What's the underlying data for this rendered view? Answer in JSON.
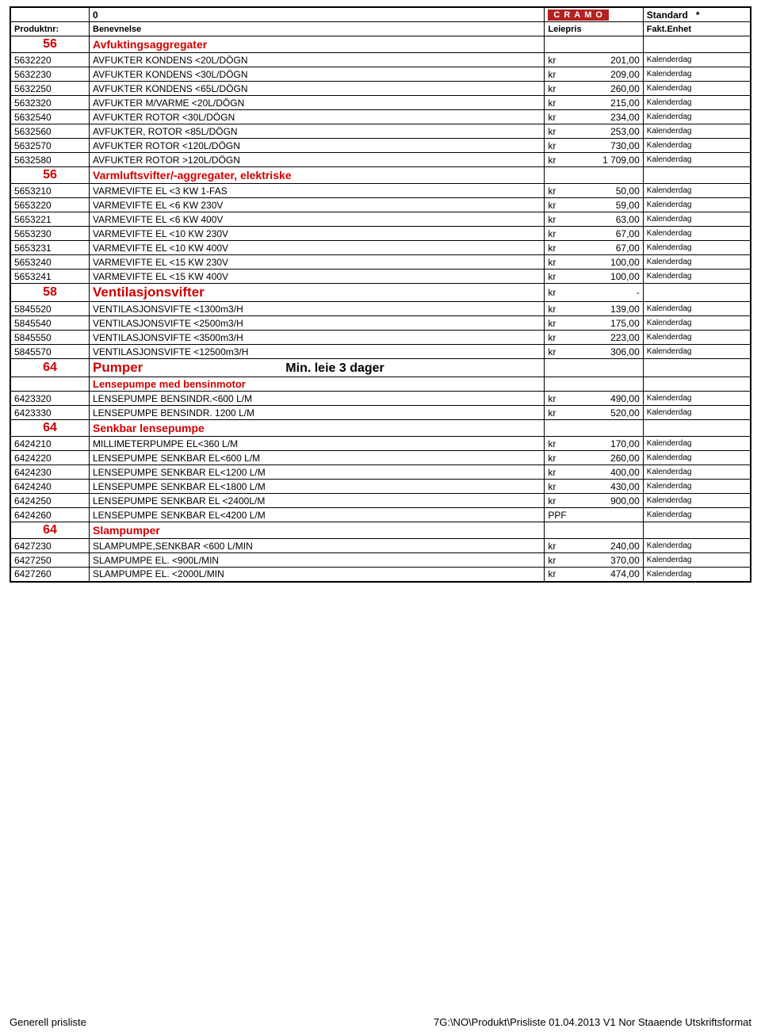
{
  "header": {
    "zero": "0",
    "logo": "CRAMO",
    "standard": "Standard",
    "star": "*",
    "produktnr": "Produktnr:",
    "benevnelse": "Benevnelse",
    "leiepris": "Leiepris",
    "faktenhet": "Fakt.Enhet"
  },
  "sections": [
    {
      "code": "56",
      "title": "Avfuktingsaggregater",
      "style": "section",
      "rows": [
        {
          "prod": "5632220",
          "name": "AVFUKTER KONDENS <20L/DÖGN",
          "cur": "kr",
          "price": "201,00",
          "unit": "Kalenderdag"
        },
        {
          "prod": "5632230",
          "name": "AVFUKTER KONDENS <30L/DÖGN",
          "cur": "kr",
          "price": "209,00",
          "unit": "Kalenderdag"
        },
        {
          "prod": "5632250",
          "name": "AVFUKTER KONDENS <65L/DÖGN",
          "cur": "kr",
          "price": "260,00",
          "unit": "Kalenderdag"
        },
        {
          "prod": "5632320",
          "name": "AVFUKTER M/VARME <20L/DÖGN",
          "cur": "kr",
          "price": "215,00",
          "unit": "Kalenderdag"
        },
        {
          "prod": "5632540",
          "name": "AVFUKTER ROTOR <30L/DÖGN",
          "cur": "kr",
          "price": "234,00",
          "unit": "Kalenderdag"
        },
        {
          "prod": "5632560",
          "name": "AVFUKTER, ROTOR <85L/DÖGN",
          "cur": "kr",
          "price": "253,00",
          "unit": "Kalenderdag"
        },
        {
          "prod": "5632570",
          "name": "AVFUKTER ROTOR <120L/DÖGN",
          "cur": "kr",
          "price": "730,00",
          "unit": "Kalenderdag"
        },
        {
          "prod": "5632580",
          "name": "AVFUKTER ROTOR >120L/DÖGN",
          "cur": "kr",
          "price": "1 709,00",
          "unit": "Kalenderdag"
        }
      ]
    },
    {
      "code": "56",
      "title": "Varmluftsvifter/-aggregater, elektriske",
      "style": "section",
      "rows": [
        {
          "prod": "5653210",
          "name": "VARMEVIFTE EL <3 KW 1-FAS",
          "cur": "kr",
          "price": "50,00",
          "unit": "Kalenderdag"
        },
        {
          "prod": "5653220",
          "name": "VARMEVIFTE EL <6 KW 230V",
          "cur": "kr",
          "price": "59,00",
          "unit": "Kalenderdag"
        },
        {
          "prod": "5653221",
          "name": "VARMEVIFTE EL <6 KW 400V",
          "cur": "kr",
          "price": "63,00",
          "unit": "Kalenderdag"
        },
        {
          "prod": "5653230",
          "name": "VARMEVIFTE EL <10 KW 230V",
          "cur": "kr",
          "price": "67,00",
          "unit": "Kalenderdag"
        },
        {
          "prod": "5653231",
          "name": "VARMEVIFTE EL <10 KW 400V",
          "cur": "kr",
          "price": "67,00",
          "unit": "Kalenderdag"
        },
        {
          "prod": "5653240",
          "name": "VARMEVIFTE EL <15 KW 230V",
          "cur": "kr",
          "price": "100,00",
          "unit": "Kalenderdag"
        },
        {
          "prod": "5653241",
          "name": "VARMEVIFTE EL <15 KW 400V",
          "cur": "kr",
          "price": "100,00",
          "unit": "Kalenderdag"
        }
      ]
    },
    {
      "code": "58",
      "title": "Ventilasjonsvifter",
      "style": "section-big",
      "section_price_cur": "kr",
      "section_price_val": "-",
      "rows": [
        {
          "prod": "5845520",
          "name": "VENTILASJONSVIFTE <1300m3/H",
          "cur": "kr",
          "price": "139,00",
          "unit": "Kalenderdag"
        },
        {
          "prod": "5845540",
          "name": "VENTILASJONSVIFTE <2500m3/H",
          "cur": "kr",
          "price": "175,00",
          "unit": "Kalenderdag"
        },
        {
          "prod": "5845550",
          "name": "VENTILASJONSVIFTE <3500m3/H",
          "cur": "kr",
          "price": "223,00",
          "unit": "Kalenderdag"
        },
        {
          "prod": "5845570",
          "name": "VENTILASJONSVIFTE <12500m3/H",
          "cur": "kr",
          "price": "306,00",
          "unit": "Kalenderdag"
        }
      ]
    },
    {
      "code": "64",
      "title": "Pumper",
      "extra": "Min. leie 3 dager",
      "style": "section-big",
      "rows": []
    },
    {
      "code": "",
      "title": "Lensepumpe med bensinmotor",
      "style": "section-sub",
      "rows": [
        {
          "prod": "6423320",
          "name": "LENSEPUMPE BENSINDR.<600 L/M",
          "cur": "kr",
          "price": "490,00",
          "unit": "Kalenderdag"
        },
        {
          "prod": "6423330",
          "name": "LENSEPUMPE BENSINDR. 1200 L/M",
          "cur": "kr",
          "price": "520,00",
          "unit": "Kalenderdag"
        }
      ]
    },
    {
      "code": "64",
      "title": "Senkbar lensepumpe",
      "style": "section",
      "rows": [
        {
          "prod": "6424210",
          "name": "MILLIMETERPUMPE EL<360 L/M",
          "cur": "kr",
          "price": "170,00",
          "unit": "Kalenderdag"
        },
        {
          "prod": "6424220",
          "name": "LENSEPUMPE SENKBAR EL<600 L/M",
          "cur": "kr",
          "price": "260,00",
          "unit": "Kalenderdag"
        },
        {
          "prod": "6424230",
          "name": "LENSEPUMPE SENKBAR EL<1200 L/M",
          "cur": "kr",
          "price": "400,00",
          "unit": "Kalenderdag"
        },
        {
          "prod": "6424240",
          "name": "LENSEPUMPE SENKBAR EL<1800 L/M",
          "cur": "kr",
          "price": "430,00",
          "unit": "Kalenderdag"
        },
        {
          "prod": "6424250",
          "name": "LENSEPUMPE SENKBAR EL <2400L/M",
          "cur": "kr",
          "price": "900,00",
          "unit": "Kalenderdag"
        },
        {
          "prod": "6424260",
          "name": "LENSEPUMPE SENKBAR EL<4200 L/M",
          "cur": "PPF",
          "price": "",
          "unit": "Kalenderdag"
        }
      ]
    },
    {
      "code": "64",
      "title": "Slampumper",
      "style": "section",
      "rows": [
        {
          "prod": "6427230",
          "name": "SLAMPUMPE,SENKBAR <600 L/MIN",
          "cur": "kr",
          "price": "240,00",
          "unit": "Kalenderdag"
        },
        {
          "prod": "6427250",
          "name": "SLAMPUMPE EL. <900L/MIN",
          "cur": "kr",
          "price": "370,00",
          "unit": "Kalenderdag"
        },
        {
          "prod": "6427260",
          "name": "SLAMPUMPE EL. <2000L/MIN",
          "cur": "kr",
          "price": "474,00",
          "unit": "Kalenderdag"
        }
      ]
    }
  ],
  "footer": {
    "left": "Generell prisliste",
    "right": "7G:\\NO\\Produkt\\Prisliste 01.04.2013 V1 Nor Staaende Utskriftsformat"
  }
}
